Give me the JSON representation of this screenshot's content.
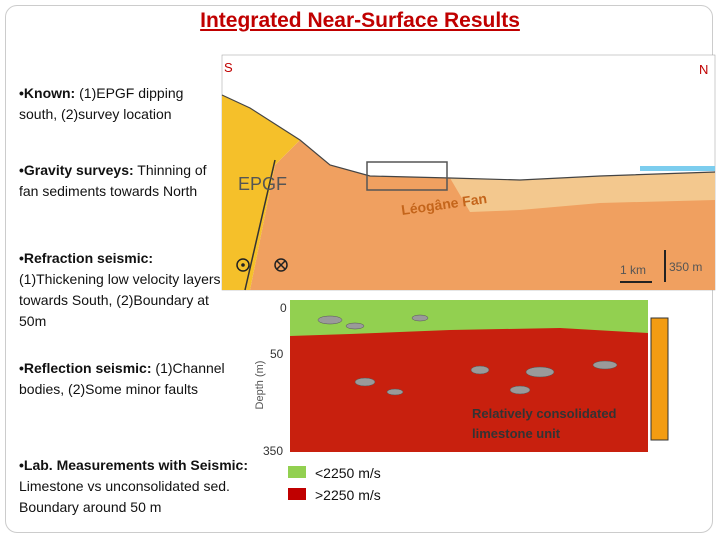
{
  "header": {
    "title": "Integrated Near-Surface Results"
  },
  "bullets": [
    {
      "label": "Known:",
      "text": "(1)EPGF dipping south, (2)survey location"
    },
    {
      "label": "Gravity surveys:",
      "text": "Thinning of fan sediments towards North"
    },
    {
      "label": "Refraction seismic:",
      "text": "(1)Thickening low velocity layers towards South, (2)Boundary at 50m"
    },
    {
      "label": "Reflection seismic:",
      "text": "(1)Channel bodies, (2)Some minor faults"
    },
    {
      "label": "Lab. Measurements with Seismic:",
      "text": "Limestone vs unconsolidated sed. Boundary around 50 m"
    }
  ],
  "cross_section": {
    "south": "S",
    "north": "N",
    "fault": "EPGF",
    "fan": "Léogâne Fan",
    "scale_h": "1 km",
    "scale_v": "350 m"
  },
  "seismic_section": {
    "depth_axis": "Depth (m)",
    "depth_labels": [
      "0",
      "50",
      "350"
    ],
    "unit_label": "Relatively consolidated limestone unit"
  },
  "legend": [
    {
      "label": "<2250 m/s",
      "color": "#92d050"
    },
    {
      "label": ">2250 m/s",
      "color": "#c00000"
    }
  ]
}
